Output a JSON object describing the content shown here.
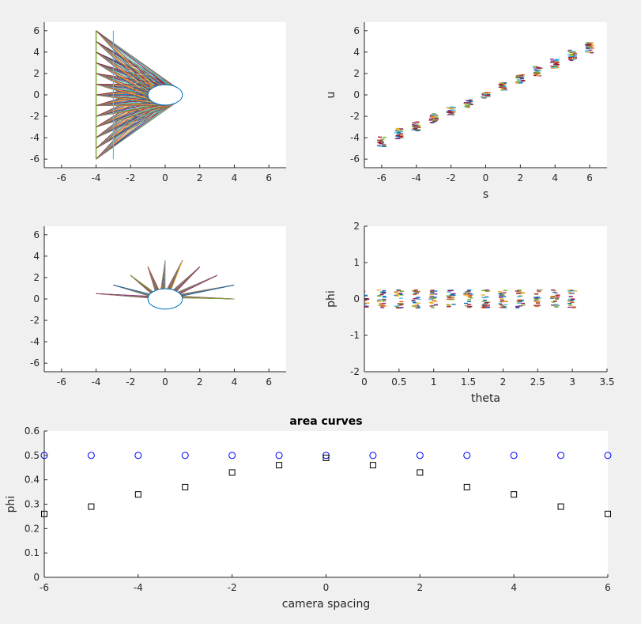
{
  "figure": {
    "background": "#f0f0f0"
  },
  "palette": [
    "#0072bd",
    "#d95319",
    "#edb120",
    "#7e2f8e",
    "#77ac30",
    "#4dbeee",
    "#a2142f"
  ],
  "chart_data": [
    {
      "id": "p1",
      "type": "line",
      "title": "",
      "xlabel": "",
      "ylabel": "",
      "xlim": [
        -7,
        7
      ],
      "ylim": [
        -6.8,
        6.8
      ],
      "xticks": [
        -6,
        -4,
        -2,
        0,
        2,
        4,
        6
      ],
      "xtick_labels": [
        "-6",
        "-4",
        "-2",
        "0",
        "2",
        "4",
        "6"
      ],
      "yticks": [
        -6,
        -4,
        -2,
        0,
        2,
        4,
        6
      ],
      "ytick_labels": [
        "-6",
        "-4",
        "-2",
        "0",
        "2",
        "4",
        "6"
      ],
      "grid": false,
      "camera_line": {
        "x": -4,
        "y_range": [
          -6,
          6
        ]
      },
      "image_line": {
        "x": -3,
        "y_range": [
          -6,
          6
        ]
      },
      "camera_y": [
        -6,
        -5,
        -4,
        -3,
        -2,
        -1,
        0,
        1,
        2,
        3,
        4,
        5,
        6
      ],
      "object": {
        "type": "ellipse",
        "cx": 0,
        "cy": 0,
        "rx": 1,
        "ry": 1
      }
    },
    {
      "id": "p2",
      "type": "scatter",
      "title": "",
      "xlabel": "s",
      "ylabel": "u",
      "xlim": [
        -7,
        7
      ],
      "ylim": [
        -6.8,
        6.8
      ],
      "xticks": [
        -6,
        -4,
        -2,
        0,
        2,
        4,
        6
      ],
      "xtick_labels": [
        "-6",
        "-4",
        "-2",
        "0",
        "2",
        "4",
        "6"
      ],
      "yticks": [
        -6,
        -4,
        -2,
        0,
        2,
        4,
        6
      ],
      "ytick_labels": [
        "-6",
        "-4",
        "-2",
        "0",
        "2",
        "4",
        "6"
      ],
      "grid": false,
      "x": [
        -6,
        -5,
        -4,
        -3,
        -2,
        -1,
        0,
        1,
        2,
        3,
        4,
        5,
        6
      ],
      "y_center": [
        -4.4,
        -3.6,
        -2.9,
        -2.2,
        -1.5,
        -0.8,
        0,
        0.8,
        1.5,
        2.2,
        2.9,
        3.7,
        4.4
      ],
      "y_spread": [
        0.5,
        0.5,
        0.45,
        0.45,
        0.4,
        0.35,
        0.3,
        0.35,
        0.4,
        0.45,
        0.45,
        0.5,
        0.5
      ]
    },
    {
      "id": "p3",
      "type": "line",
      "title": "",
      "xlabel": "",
      "ylabel": "",
      "xlim": [
        -7,
        7
      ],
      "ylim": [
        -6.8,
        6.8
      ],
      "xticks": [
        -6,
        -4,
        -2,
        0,
        2,
        4,
        6
      ],
      "xtick_labels": [
        "-6",
        "-4",
        "-2",
        "0",
        "2",
        "4",
        "6"
      ],
      "yticks": [
        -6,
        -4,
        -2,
        0,
        2,
        4,
        6
      ],
      "ytick_labels": [
        "-6",
        "-4",
        "-2",
        "0",
        "2",
        "4",
        "6"
      ],
      "grid": false,
      "star_points": [
        [
          -4,
          0.5
        ],
        [
          -3,
          1.3
        ],
        [
          -2,
          2.2
        ],
        [
          -1,
          3.0
        ],
        [
          0,
          3.6
        ],
        [
          1,
          3.6
        ],
        [
          2,
          3.0
        ],
        [
          3,
          2.2
        ],
        [
          4,
          1.3
        ],
        [
          4,
          0
        ]
      ],
      "object": {
        "type": "ellipse",
        "cx": 0,
        "cy": 0,
        "rx": 1,
        "ry": 1
      }
    },
    {
      "id": "p4",
      "type": "scatter",
      "title": "",
      "xlabel": "theta",
      "ylabel": "phi",
      "xlim": [
        0,
        3.5
      ],
      "ylim": [
        -2,
        2
      ],
      "xticks": [
        0,
        0.5,
        1,
        1.5,
        2,
        2.5,
        3,
        3.5
      ],
      "xtick_labels": [
        "0",
        "0.5",
        "1",
        "1.5",
        "2",
        "2.5",
        "3",
        "3.5"
      ],
      "yticks": [
        -2,
        -1,
        0,
        1,
        2
      ],
      "ytick_labels": [
        "-2",
        "-1",
        "0",
        "1",
        "2"
      ],
      "grid": false,
      "x": [
        0,
        0.25,
        0.5,
        0.75,
        1,
        1.25,
        1.5,
        1.75,
        2,
        2.25,
        2.5,
        2.75,
        3
      ],
      "y_center": 0,
      "y_spread": 0.25
    },
    {
      "id": "p5",
      "type": "scatter",
      "title": "area curves",
      "xlabel": "camera spacing",
      "ylabel": "phi",
      "xlim": [
        -6,
        6
      ],
      "ylim": [
        0,
        0.6
      ],
      "xticks": [
        -6,
        -4,
        -2,
        0,
        2,
        4,
        6
      ],
      "xtick_labels": [
        "-6",
        "-4",
        "-2",
        "0",
        "2",
        "4",
        "6"
      ],
      "yticks": [
        0,
        0.1,
        0.2,
        0.3,
        0.4,
        0.5,
        0.6
      ],
      "ytick_labels": [
        "0",
        "0.1",
        "0.2",
        "0.3",
        "0.4",
        "0.5",
        "0.6"
      ],
      "grid": false,
      "x": [
        -6,
        -5,
        -4,
        -3,
        -2,
        -1,
        0,
        1,
        2,
        3,
        4,
        5,
        6
      ],
      "series": [
        {
          "marker": "circle",
          "color": "#0000ff",
          "values": [
            0.5,
            0.5,
            0.5,
            0.5,
            0.5,
            0.5,
            0.5,
            0.5,
            0.5,
            0.5,
            0.5,
            0.5,
            0.5
          ]
        },
        {
          "marker": "square",
          "color": "#000000",
          "values": [
            0.26,
            0.29,
            0.34,
            0.37,
            0.43,
            0.46,
            0.49,
            0.46,
            0.43,
            0.37,
            0.34,
            0.29,
            0.26
          ]
        }
      ]
    }
  ]
}
